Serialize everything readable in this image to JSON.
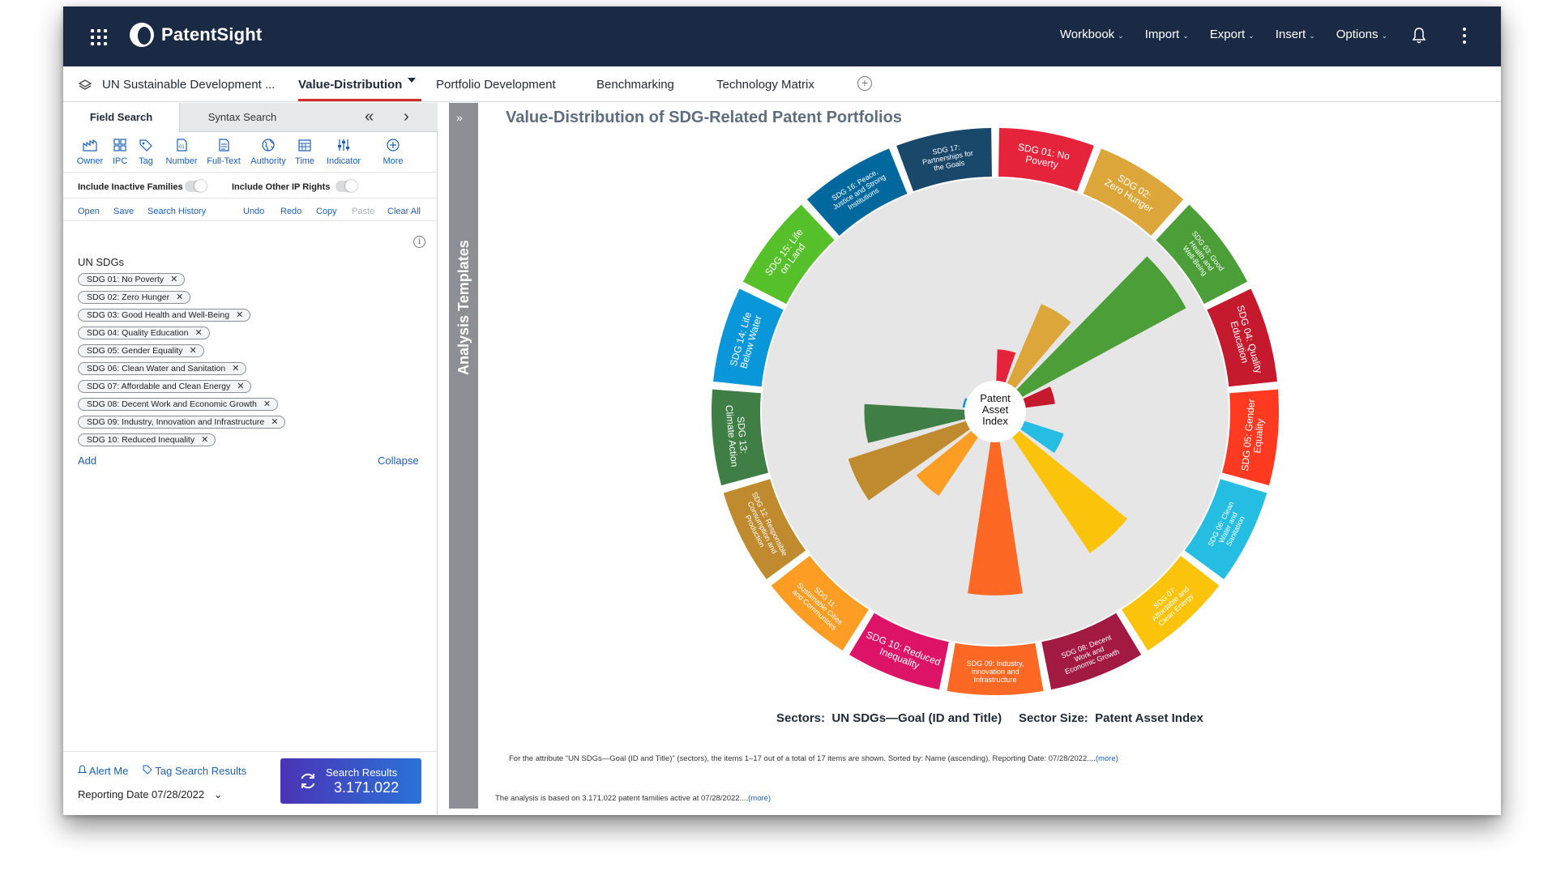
{
  "app": {
    "name": "PatentSight",
    "menu": [
      "Workbook",
      "Import",
      "Export",
      "Insert",
      "Options"
    ]
  },
  "tabs": [
    {
      "label": "UN Sustainable Development ..."
    },
    {
      "label": "Value-Distribution"
    },
    {
      "label": "Portfolio Development"
    },
    {
      "label": "Benchmarking"
    },
    {
      "label": "Technology Matrix"
    }
  ],
  "search": {
    "tabs": [
      "Field Search",
      "Syntax Search"
    ],
    "tools": [
      "Owner",
      "IPC",
      "Tag",
      "Number",
      "Full-Text",
      "Authority",
      "Time",
      "Indicator",
      "More"
    ],
    "toggles": [
      "Include Inactive Families",
      "Include Other IP Rights"
    ],
    "actions": [
      "Open",
      "Save",
      "Search History",
      "Undo",
      "Redo",
      "Copy",
      "Paste",
      "Clear All"
    ],
    "group_label": "UN SDGs",
    "chips": [
      "SDG 01: No Poverty",
      "SDG 02: Zero Hunger",
      "SDG 03: Good Health and Well-Being",
      "SDG 04: Quality Education",
      "SDG 05: Gender Equality",
      "SDG 06: Clean Water and Sanitation",
      "SDG 07: Affordable and Clean Energy",
      "SDG 08: Decent Work and Economic Growth",
      "SDG 09: Industry, Innovation and Infrastructure",
      "SDG 10: Reduced Inequality"
    ],
    "add_label": "Add",
    "collapse_label": "Collapse",
    "alert_label": "Alert Me",
    "tag_results_label": "Tag Search Results",
    "reporting_date": "Reporting Date 07/28/2022",
    "results_label": "Search Results",
    "results_count": "3.171.022"
  },
  "analysis_templates_label": "Analysis Templates",
  "chart": {
    "title": "Value-Distribution of SDG-Related Patent Portfolios",
    "center_label": [
      "Patent",
      "Asset",
      "Index"
    ],
    "sectors_caption": "Sectors:  UN SDGs—Goal (ID and Title)     Sector Size:  Patent Asset Index",
    "footnote1": "For the attribute \"UN SDGs—Goal (ID and Title)\" (sectors), the items 1–17 out of a total of 17 items are shown. Sorted by: Name (ascending). Reporting Date: 07/28/2022....",
    "footnote2": "The analysis is based on 3.171.022 patent families active at 07/28/2022....",
    "more_label": "(more)"
  },
  "chart_data": {
    "type": "polar-bar",
    "title": "Value-Distribution of SDG-Related Patent Portfolios",
    "categories": [
      "SDG 01: No Poverty",
      "SDG 02: Zero Hunger",
      "SDG 03: Good Health and Well-Being",
      "SDG 04: Quality Education",
      "SDG 05: Gender Equality",
      "SDG 06: Clean Water and Sanitation",
      "SDG 07: Affordable and Clean Energy",
      "SDG 08: Decent Work and Economic Growth",
      "SDG 09: Industry, Innovation and Infrastructure",
      "SDG 10: Reduced Inequality",
      "SDG 11: Sustainable Cities and Communities",
      "SDG 12: Responsible Consumption and Production",
      "SDG 13: Climate Action",
      "SDG 14: Life Below Water",
      "SDG 15: Life on Land",
      "SDG 16: Peace, Justice and Strong Institutions",
      "SDG 17: Partnerships for the Goals"
    ],
    "ring_labels": [
      [
        "SDG 01: No",
        "Poverty"
      ],
      [
        "SDG 02:",
        "Zero Hunger"
      ],
      [
        "SDG 03: Good",
        "Health and",
        "Well-Being"
      ],
      [
        "SDG 04: Quality",
        "Education"
      ],
      [
        "SDG 05: Gender",
        "Equality"
      ],
      [
        "SDG 06: Clean",
        "Water and",
        "Sanitation"
      ],
      [
        "SDG 07:",
        "Affordable and",
        "Clean Energy"
      ],
      [
        "SDG 08: Decent",
        "Work and",
        "Economic Growth"
      ],
      [
        "SDG 09: Industry,",
        "Innovation and",
        "Infrastructure"
      ],
      [
        "SDG 10: Reduced",
        "Inequality"
      ],
      [
        "SDG 11:",
        "Sustainable Cities",
        "and Communities"
      ],
      [
        "SDG 12: Responsible",
        "Consumption and",
        "Production"
      ],
      [
        "SDG 13:",
        "Climate Action"
      ],
      [
        "SDG 14: Life",
        "Below Water"
      ],
      [
        "SDG 15: Life",
        "on Land"
      ],
      [
        "SDG 16: Peace,",
        "Justice and Strong",
        "Institutions"
      ],
      [
        "SDG 17:",
        "Partnerships for",
        "the Goals"
      ]
    ],
    "values": [
      0.21,
      0.49,
      1.0,
      0.2,
      0.0,
      0.26,
      0.76,
      0.0,
      0.83,
      0.0,
      0.41,
      0.68,
      0.56,
      0.06,
      0.05,
      0.0,
      0.0
    ],
    "colors": [
      "#e5243b",
      "#dda63a",
      "#4c9f38",
      "#c5192d",
      "#ff3a21",
      "#26bde2",
      "#fcc30b",
      "#a21942",
      "#fd6925",
      "#dd1367",
      "#fd9d24",
      "#bf8b2e",
      "#3f7e44",
      "#0a97d9",
      "#56c02b",
      "#00689d",
      "#19486a"
    ],
    "sector_size": "Patent Asset Index",
    "sectors": "UN SDGs—Goal (ID and Title)"
  }
}
